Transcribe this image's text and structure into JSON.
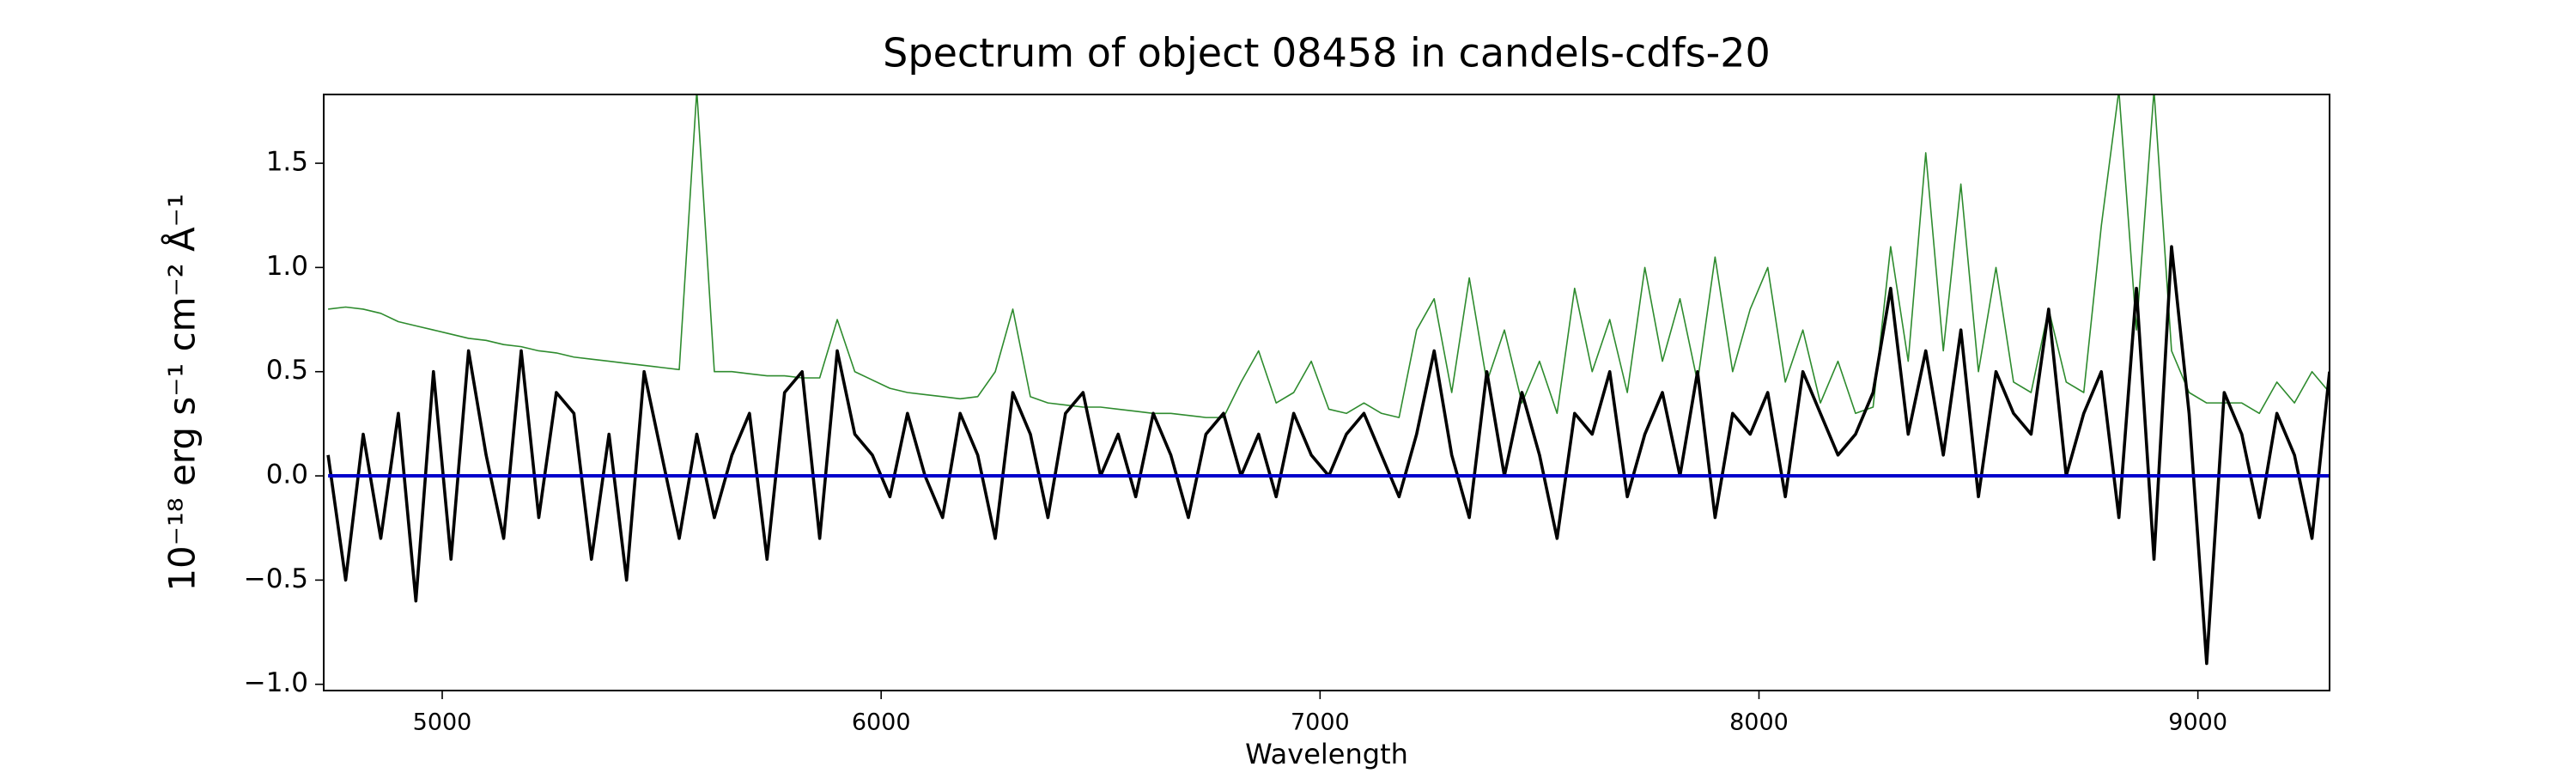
{
  "chart_data": {
    "type": "line",
    "title": "Spectrum of object 08458 in candels-cdfs-20",
    "x_label": "Wavelength",
    "y_label": "10⁻¹⁸ erg s⁻¹ cm⁻² Å⁻¹",
    "x": [
      4740,
      4780,
      4820,
      4860,
      4900,
      4940,
      4980,
      5020,
      5060,
      5100,
      5140,
      5180,
      5220,
      5260,
      5300,
      5340,
      5380,
      5420,
      5460,
      5500,
      5540,
      5580,
      5620,
      5660,
      5700,
      5740,
      5780,
      5820,
      5860,
      5900,
      5940,
      5980,
      6020,
      6060,
      6100,
      6140,
      6180,
      6220,
      6260,
      6300,
      6340,
      6380,
      6420,
      6460,
      6500,
      6540,
      6580,
      6620,
      6660,
      6700,
      6740,
      6780,
      6820,
      6860,
      6900,
      6940,
      6980,
      7020,
      7060,
      7100,
      7140,
      7180,
      7220,
      7260,
      7300,
      7340,
      7380,
      7420,
      7460,
      7500,
      7540,
      7580,
      7620,
      7660,
      7700,
      7740,
      7780,
      7820,
      7860,
      7900,
      7940,
      7980,
      8020,
      8060,
      8100,
      8140,
      8180,
      8220,
      8260,
      8300,
      8340,
      8380,
      8420,
      8460,
      8500,
      8540,
      8580,
      8620,
      8660,
      8700,
      8740,
      8780,
      8820,
      8860,
      8900,
      8940,
      8980,
      9020,
      9060,
      9100,
      9140,
      9180,
      9220,
      9260,
      9300
    ],
    "series": [
      {
        "color": "#2e8b2e",
        "values": [
          0.8,
          0.81,
          0.8,
          0.78,
          0.74,
          0.72,
          0.7,
          0.68,
          0.66,
          0.65,
          0.63,
          0.62,
          0.6,
          0.59,
          0.57,
          0.56,
          0.55,
          0.54,
          0.53,
          0.52,
          0.51,
          1.85,
          0.5,
          0.5,
          0.49,
          0.48,
          0.48,
          0.47,
          0.47,
          0.75,
          0.5,
          0.46,
          0.42,
          0.4,
          0.39,
          0.38,
          0.37,
          0.38,
          0.5,
          0.8,
          0.38,
          0.35,
          0.34,
          0.33,
          0.33,
          0.32,
          0.31,
          0.3,
          0.3,
          0.29,
          0.28,
          0.28,
          0.45,
          0.6,
          0.35,
          0.4,
          0.55,
          0.32,
          0.3,
          0.35,
          0.3,
          0.28,
          0.7,
          0.85,
          0.4,
          0.95,
          0.45,
          0.7,
          0.35,
          0.55,
          0.3,
          0.9,
          0.5,
          0.75,
          0.4,
          1.0,
          0.55,
          0.85,
          0.45,
          1.05,
          0.5,
          0.8,
          1.0,
          0.45,
          0.7,
          0.35,
          0.55,
          0.3,
          0.33,
          1.1,
          0.55,
          1.55,
          0.6,
          1.4,
          0.5,
          1.0,
          0.45,
          0.4,
          0.8,
          0.45,
          0.4,
          1.2,
          1.85,
          0.7,
          1.85,
          0.6,
          0.4,
          0.35,
          0.35,
          0.35,
          0.3,
          0.45,
          0.35,
          0.5,
          0.4
        ]
      },
      {
        "color": "#000000",
        "values": [
          0.1,
          -0.5,
          0.2,
          -0.3,
          0.3,
          -0.6,
          0.5,
          -0.4,
          0.6,
          0.1,
          -0.3,
          0.6,
          -0.2,
          0.4,
          0.3,
          -0.4,
          0.2,
          -0.5,
          0.5,
          0.1,
          -0.3,
          0.2,
          -0.2,
          0.1,
          0.3,
          -0.4,
          0.4,
          0.5,
          -0.3,
          0.6,
          0.2,
          0.1,
          -0.1,
          0.3,
          0.0,
          -0.2,
          0.3,
          0.1,
          -0.3,
          0.4,
          0.2,
          -0.2,
          0.3,
          0.4,
          0.0,
          0.2,
          -0.1,
          0.3,
          0.1,
          -0.2,
          0.2,
          0.3,
          0.0,
          0.2,
          -0.1,
          0.3,
          0.1,
          0.0,
          0.2,
          0.3,
          0.1,
          -0.1,
          0.2,
          0.6,
          0.1,
          -0.2,
          0.5,
          0.0,
          0.4,
          0.1,
          -0.3,
          0.3,
          0.2,
          0.5,
          -0.1,
          0.2,
          0.4,
          0.0,
          0.5,
          -0.2,
          0.3,
          0.2,
          0.4,
          -0.1,
          0.5,
          0.3,
          0.1,
          0.2,
          0.4,
          0.9,
          0.2,
          0.6,
          0.1,
          0.7,
          -0.1,
          0.5,
          0.3,
          0.2,
          0.8,
          0.0,
          0.3,
          0.5,
          -0.2,
          0.9,
          -0.4,
          1.1,
          0.3,
          -0.9,
          0.4,
          0.2,
          -0.2,
          0.3,
          0.1,
          -0.3,
          0.5
        ]
      },
      {
        "color": "#0000cc",
        "values": [
          0,
          0,
          0,
          0,
          0,
          0,
          0,
          0,
          0,
          0,
          0,
          0,
          0,
          0,
          0,
          0,
          0,
          0,
          0,
          0,
          0,
          0,
          0,
          0,
          0,
          0,
          0,
          0,
          0,
          0,
          0,
          0,
          0,
          0,
          0,
          0,
          0,
          0,
          0,
          0,
          0,
          0,
          0,
          0,
          0,
          0,
          0,
          0,
          0,
          0,
          0,
          0,
          0,
          0,
          0,
          0,
          0,
          0,
          0,
          0,
          0,
          0,
          0,
          0,
          0,
          0,
          0,
          0,
          0,
          0,
          0,
          0,
          0,
          0,
          0,
          0,
          0,
          0,
          0,
          0,
          0,
          0,
          0,
          0,
          0,
          0,
          0,
          0,
          0,
          0,
          0,
          0,
          0,
          0,
          0,
          0,
          0,
          0,
          0,
          0,
          0,
          0,
          0,
          0,
          0,
          0,
          0,
          0,
          0,
          0,
          0,
          0,
          0,
          0,
          0
        ]
      }
    ],
    "xlim": [
      4730,
      9300
    ],
    "ylim": [
      -1.03,
      1.83
    ],
    "xticks": [
      5000,
      6000,
      7000,
      8000,
      9000
    ],
    "yticks": [
      {
        "value": -1.0,
        "label": "−1.0"
      },
      {
        "value": -0.5,
        "label": "−0.5"
      },
      {
        "value": 0.0,
        "label": "0.0"
      },
      0.5,
      {
        "value": 1.0,
        "label": "1.0"
      },
      1.5
    ]
  }
}
